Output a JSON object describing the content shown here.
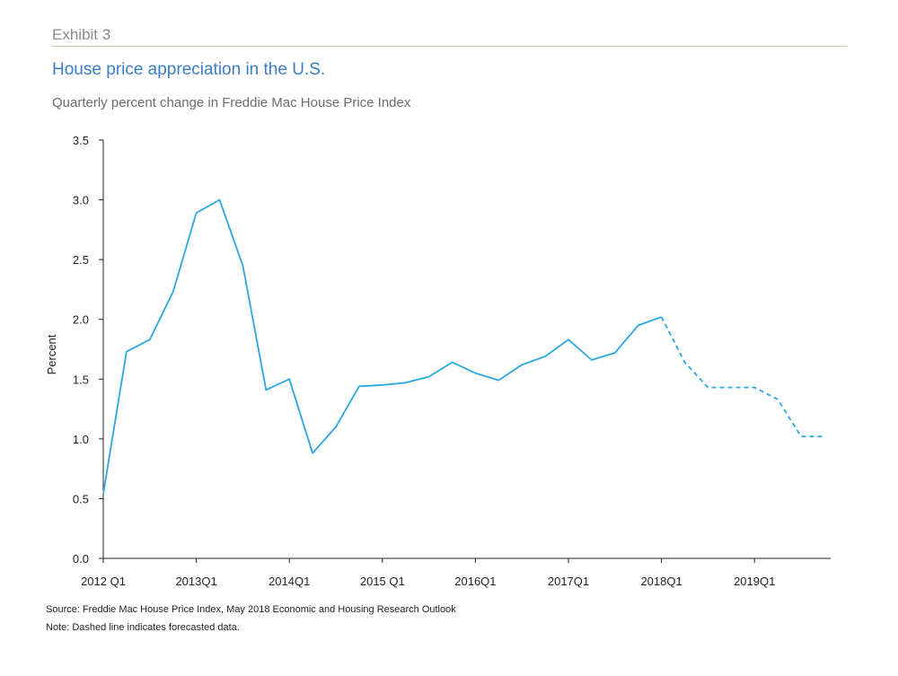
{
  "header": {
    "exhibit": "Exhibit 3",
    "title": "House price appreciation in the U.S.",
    "subtitle": "Quarterly percent change in Freddie Mac House Price Index"
  },
  "footer": {
    "source": "Source: Freddie Mac House Price Index, May 2018 Economic and Housing Research Outlook",
    "note": "Note: Dashed line indicates forecasted data."
  },
  "colors": {
    "line": "#2aa7e0",
    "axis": "#222222",
    "title": "#3a7dc9"
  },
  "chart_data": {
    "type": "line",
    "ylabel": "Percent",
    "ylim": [
      0,
      3.5
    ],
    "yticks": [
      "0.0",
      "0.5",
      "1.0",
      "1.5",
      "2.0",
      "2.5",
      "3.0",
      "3.5"
    ],
    "xticks": [
      "2012 Q1",
      "2013Q1",
      "2014Q1",
      "2015 Q1",
      "2016Q1",
      "2017Q1",
      "2018Q1",
      "2019Q1"
    ],
    "grid": false,
    "x": [
      "2012Q1",
      "2012Q2",
      "2012Q3",
      "2012Q4",
      "2013Q1",
      "2013Q2",
      "2013Q3",
      "2013Q4",
      "2014Q1",
      "2014Q2",
      "2014Q3",
      "2014Q4",
      "2015Q1",
      "2015Q2",
      "2015Q3",
      "2015Q4",
      "2016Q1",
      "2016Q2",
      "2016Q3",
      "2016Q4",
      "2017Q1",
      "2017Q2",
      "2017Q3",
      "2017Q4",
      "2018Q1",
      "2018Q2",
      "2018Q3",
      "2018Q4",
      "2019Q1",
      "2019Q2",
      "2019Q3",
      "2019Q4"
    ],
    "series": [
      {
        "style": "solid",
        "values": [
          0.54,
          1.73,
          1.83,
          2.23,
          2.89,
          3.0,
          2.45,
          1.41,
          1.5,
          0.88,
          1.1,
          1.44,
          1.45,
          1.47,
          1.52,
          1.64,
          1.55,
          1.49,
          1.62,
          1.69,
          1.83,
          1.66,
          1.72,
          1.95,
          2.02,
          null,
          null,
          null,
          null,
          null,
          null,
          null
        ]
      },
      {
        "style": "dashed",
        "values": [
          null,
          null,
          null,
          null,
          null,
          null,
          null,
          null,
          null,
          null,
          null,
          null,
          null,
          null,
          null,
          null,
          null,
          null,
          null,
          null,
          null,
          null,
          null,
          null,
          2.02,
          1.64,
          1.43,
          1.43,
          1.43,
          1.33,
          1.02,
          1.02
        ]
      }
    ]
  }
}
